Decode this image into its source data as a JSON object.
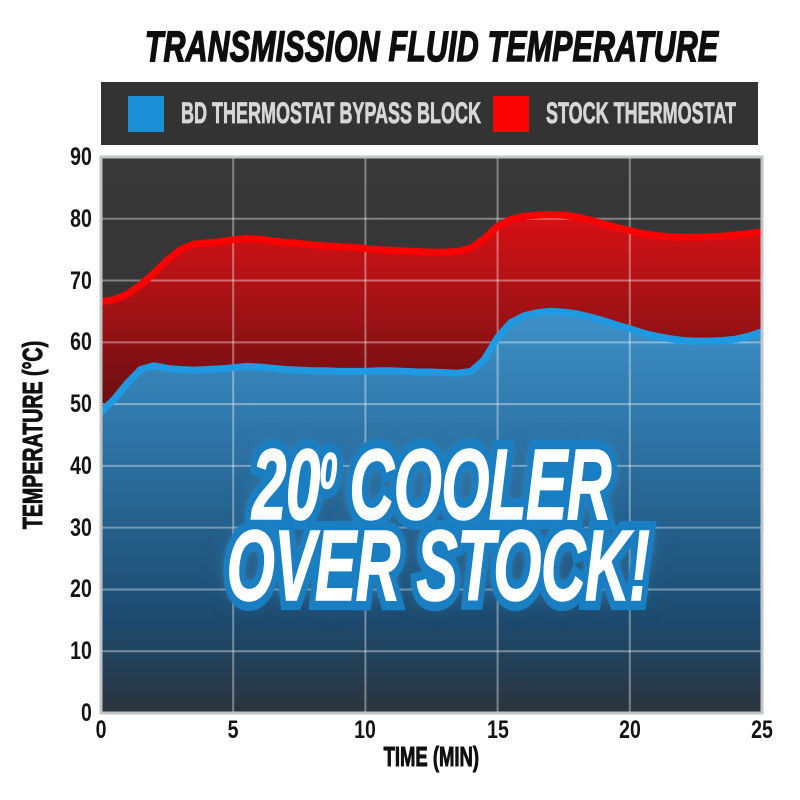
{
  "page": {
    "title": "TRANSMISSION FLUID TEMPERATURE",
    "background": "#ffffff"
  },
  "legend": {
    "background": "#333333",
    "text_color": "#d7d7d7",
    "items": [
      {
        "label": "BD THERMOSTAT BYPASS BLOCK",
        "color": "#1b8fd6"
      },
      {
        "label": "STOCK THERMOSTAT",
        "color": "#fb0303"
      }
    ]
  },
  "overlay": {
    "line1_number": "20",
    "degree_mark": "0",
    "line1_word": "COOLER",
    "line2": "OVER STOCK!",
    "text_fill": "#ffffff",
    "outline_color": "#1a7fc2"
  },
  "chart_data": {
    "type": "area",
    "title": "TRANSMISSION FLUID TEMPERATURE",
    "xlabel": "TIME (MIN)",
    "ylabel": "TEMPERATURE (°C)",
    "xlim": [
      0,
      25
    ],
    "ylim": [
      0,
      90
    ],
    "xticks": [
      0,
      5,
      10,
      15,
      20,
      25
    ],
    "yticks": [
      0,
      10,
      20,
      30,
      40,
      50,
      60,
      70,
      80,
      90
    ],
    "grid": true,
    "legend_position": "top",
    "plot_background": "#333333",
    "gridline_color": "rgba(255,255,255,0.38)",
    "annotation": "20° COOLER OVER STOCK!",
    "x": [
      0,
      0.5,
      1,
      1.5,
      2,
      2.5,
      3,
      3.5,
      4,
      4.5,
      5,
      5.5,
      6,
      6.5,
      7,
      7.5,
      8,
      8.5,
      9,
      9.5,
      10,
      10.5,
      11,
      11.5,
      12,
      12.5,
      13,
      13.5,
      14,
      14.5,
      15,
      15.5,
      16,
      16.5,
      17,
      17.5,
      18,
      18.5,
      19,
      19.5,
      20,
      20.5,
      21,
      21.5,
      22,
      22.5,
      23,
      23.5,
      24,
      24.5,
      25
    ],
    "series": [
      {
        "name": "BD THERMOSTAT BYPASS BLOCK",
        "line_color": "#1f9ae2",
        "fill_top": "#3e92ca",
        "fill_bottom": "#2b343c",
        "values": [
          48.7,
          50.8,
          53.4,
          55.6,
          56.2,
          55.8,
          55.6,
          55.5,
          55.6,
          55.7,
          55.9,
          56.1,
          56,
          55.8,
          55.6,
          55.5,
          55.4,
          55.4,
          55.3,
          55.3,
          55.3,
          55.4,
          55.4,
          55.3,
          55.2,
          55.2,
          55.1,
          55,
          55.3,
          57.2,
          60.8,
          63.2,
          64.3,
          64.8,
          65,
          64.9,
          64.6,
          64.1,
          63.5,
          62.8,
          62.2,
          61.5,
          61,
          60.6,
          60.3,
          60.2,
          60.2,
          60.3,
          60.5,
          61,
          61.7
        ]
      },
      {
        "name": "STOCK THERMOSTAT",
        "line_color": "#fb0202",
        "fill_top": "#dc1015",
        "fill_bottom": "#5a0e11",
        "values": [
          66.6,
          66.9,
          67.8,
          69.3,
          71.2,
          73.3,
          75,
          75.9,
          76.1,
          76.3,
          76.6,
          76.8,
          76.7,
          76.4,
          76.2,
          76,
          75.8,
          75.6,
          75.5,
          75.4,
          75.2,
          75,
          74.9,
          74.8,
          74.7,
          74.6,
          74.6,
          74.7,
          75.3,
          76.8,
          78.8,
          79.9,
          80.4,
          80.6,
          80.7,
          80.6,
          80.3,
          79.8,
          79.2,
          78.6,
          78.1,
          77.6,
          77.3,
          77.1,
          77,
          77,
          77.1,
          77.2,
          77.4,
          77.6,
          77.9
        ]
      }
    ]
  }
}
